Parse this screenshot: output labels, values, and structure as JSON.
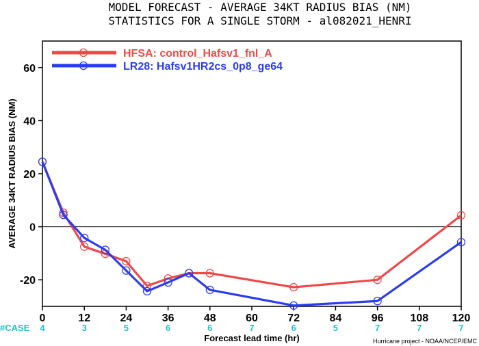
{
  "title_line1": "MODEL FORECAST - AVERAGE 34KT RADIUS BIAS (NM)",
  "title_line2": "STATISTICS FOR A SINGLE STORM - al082021_HENRI",
  "credit": "Hurricane project - NOAA/NCEP/EMC",
  "case_label": "#CASE",
  "colors": {
    "hfsa": "#f04848",
    "lr28": "#2a3cf0",
    "case": "#1fc4c4",
    "zero": "#000000"
  },
  "chart_data": {
    "type": "line",
    "title": "MODEL FORECAST - AVERAGE 34KT RADIUS BIAS (NM)",
    "subtitle": "STATISTICS FOR A SINGLE STORM - al082021_HENRI",
    "xlabel": "Forecast lead time (hr)",
    "ylabel": "AVERAGE 34KT RADIUS BIAS (NM)",
    "xlim": [
      0,
      120
    ],
    "ylim": [
      -30,
      70
    ],
    "xticks": [
      0,
      12,
      24,
      36,
      48,
      60,
      72,
      84,
      96,
      108,
      120
    ],
    "yticks": [
      -20,
      0,
      20,
      40,
      60
    ],
    "grid": false,
    "legend_position": "top-left",
    "series": [
      {
        "name": "HFSA: control_Hafsv1_fnl_A",
        "color": "#f04848",
        "x": [
          0,
          6,
          12,
          18,
          24,
          30,
          36,
          42,
          48,
          72,
          96,
          120
        ],
        "y": [
          24.5,
          5.3,
          -7.5,
          -10.2,
          -13.0,
          -22.3,
          -19.5,
          -17.5,
          -17.5,
          -22.8,
          -20.0,
          4.3
        ]
      },
      {
        "name": "LR28: Hafsv1HR2cs_0p8_ge64",
        "color": "#2a3cf0",
        "x": [
          0,
          6,
          12,
          18,
          24,
          30,
          36,
          42,
          48,
          72,
          96,
          120
        ],
        "y": [
          24.5,
          4.5,
          -4.2,
          -8.7,
          -16.5,
          -24.3,
          -21.0,
          -17.5,
          -23.8,
          -29.7,
          -28.0,
          -5.8
        ]
      }
    ],
    "cases": [
      {
        "x": 0,
        "n": "4"
      },
      {
        "x": 12,
        "n": "3"
      },
      {
        "x": 24,
        "n": "5"
      },
      {
        "x": 36,
        "n": "6"
      },
      {
        "x": 48,
        "n": "6"
      },
      {
        "x": 60,
        "n": "7"
      },
      {
        "x": 72,
        "n": "6"
      },
      {
        "x": 84,
        "n": "5"
      },
      {
        "x": 96,
        "n": "7"
      },
      {
        "x": 108,
        "n": "7"
      },
      {
        "x": 120,
        "n": "7"
      }
    ]
  }
}
